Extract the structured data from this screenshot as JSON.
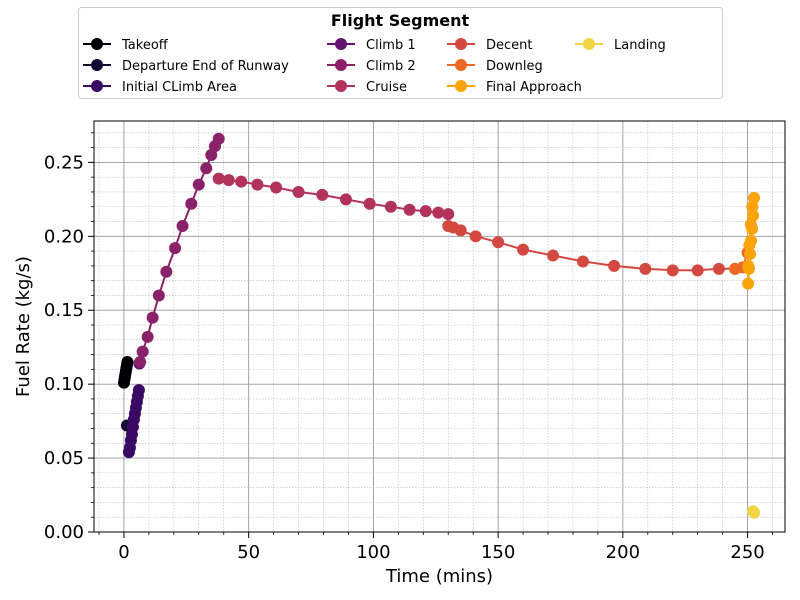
{
  "chart_data": {
    "type": "line",
    "xlabel": "Time (mins)",
    "ylabel": "Fuel Rate (kg/s)",
    "xlim": [
      -12,
      265
    ],
    "ylim": [
      0.0,
      0.278
    ],
    "xticks": [
      0,
      50,
      100,
      150,
      200,
      250
    ],
    "yticks": [
      0.0,
      0.05,
      0.1,
      0.15,
      0.2,
      0.25
    ],
    "ytick_labels": [
      "0.00",
      "0.05",
      "0.10",
      "0.15",
      "0.20",
      "0.25"
    ],
    "grid": true,
    "legend": {
      "title": "Flight Segment",
      "placement": "top-center",
      "columns": 4
    },
    "series": [
      {
        "name": "Takeoff",
        "color": "#000004",
        "x": [
          0.0,
          0.2,
          0.4,
          0.6,
          0.8,
          1.0,
          1.2,
          1.4
        ],
        "y": [
          0.101,
          0.103,
          0.105,
          0.107,
          0.109,
          0.111,
          0.113,
          0.115
        ]
      },
      {
        "name": "Departure End of Runway",
        "color": "#140b35",
        "x": [
          1.2,
          1.6
        ],
        "y": [
          0.072,
          0.072
        ]
      },
      {
        "name": "Initial CLimb Area",
        "color": "#3a0963",
        "x": [
          2.0,
          2.4,
          2.8,
          3.2,
          3.6,
          4.0,
          4.4,
          4.8,
          5.2,
          5.6,
          6.0
        ],
        "y": [
          0.054,
          0.057,
          0.062,
          0.066,
          0.071,
          0.076,
          0.08,
          0.084,
          0.088,
          0.092,
          0.096
        ]
      },
      {
        "name": "Climb 1",
        "color": "#61136e",
        "x": [
          6.2
        ],
        "y": [
          0.114
        ]
      },
      {
        "name": "Climb 2",
        "color": "#8a226a",
        "x": [
          6.5,
          7.5,
          9.5,
          11.5,
          14.0,
          17.0,
          20.5,
          23.5,
          27.0,
          30.0,
          33.0,
          35.0,
          36.5,
          38.0
        ],
        "y": [
          0.115,
          0.122,
          0.132,
          0.145,
          0.16,
          0.176,
          0.192,
          0.207,
          0.222,
          0.235,
          0.246,
          0.255,
          0.261,
          0.266
        ]
      },
      {
        "name": "Cruise",
        "color": "#b1325a",
        "x": [
          38.0,
          42.0,
          47.0,
          53.5,
          61.0,
          70.0,
          79.5,
          89.0,
          98.5,
          107.0,
          114.5,
          121.0,
          126.0,
          130.0
        ],
        "y": [
          0.239,
          0.238,
          0.237,
          0.235,
          0.233,
          0.23,
          0.228,
          0.225,
          0.222,
          0.22,
          0.218,
          0.217,
          0.216,
          0.215
        ]
      },
      {
        "name": "Decent",
        "color": "#d44842",
        "x": [
          130.0,
          132.0,
          135.0,
          141.0,
          150.0,
          160.0,
          172.0,
          184.0,
          196.5,
          209.0,
          220.0,
          230.0,
          238.5,
          245.0
        ],
        "y": [
          0.207,
          0.206,
          0.204,
          0.2,
          0.196,
          0.191,
          0.187,
          0.183,
          0.18,
          0.178,
          0.177,
          0.177,
          0.178,
          0.178
        ]
      },
      {
        "name": "Downleg",
        "color": "#ec6825",
        "x": [
          245.0,
          248.0,
          250.0
        ],
        "y": [
          0.178,
          0.179,
          0.189
        ]
      },
      {
        "name": "Final Approach",
        "color": "#fba40a",
        "x": [
          250.2,
          250.6,
          251.0,
          251.4,
          251.8,
          252.2,
          252.6,
          251.9,
          251.3,
          250.7,
          250.3
        ],
        "y": [
          0.168,
          0.178,
          0.188,
          0.197,
          0.205,
          0.214,
          0.226,
          0.22,
          0.208,
          0.194,
          0.18
        ]
      },
      {
        "name": "Landing",
        "color": "#f1d444",
        "x": [
          252.2,
          252.6
        ],
        "y": [
          0.014,
          0.013
        ]
      }
    ]
  }
}
